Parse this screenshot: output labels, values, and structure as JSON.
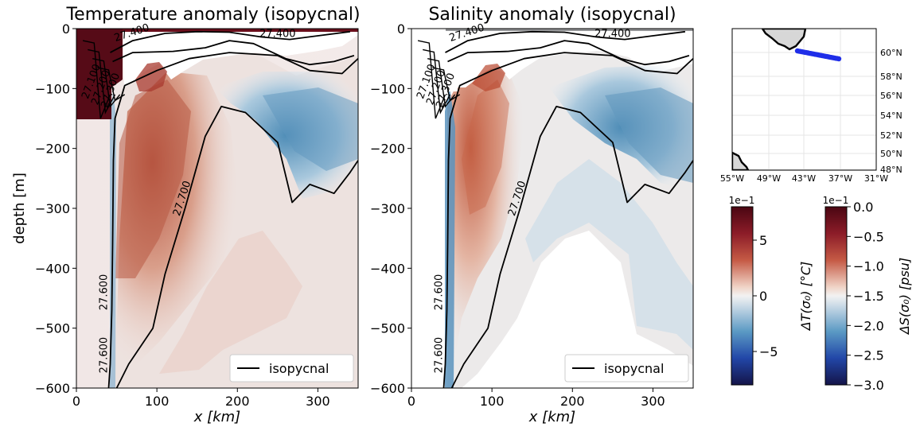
{
  "chart_data": [
    {
      "type": "heatmap",
      "title": "Temperature anomaly (isopycnal)",
      "xlabel": "x [km]",
      "ylabel": "depth [m]",
      "xlim": [
        0,
        350
      ],
      "ylim": [
        -600,
        0
      ],
      "xticks": [
        0,
        100,
        200,
        300
      ],
      "yticks": [
        0,
        -100,
        -200,
        -300,
        -400,
        -500,
        -600
      ],
      "legend": {
        "label": "isopycnal",
        "placement": "bottom-right"
      },
      "contour_labels": [
        "27.400",
        "27.400",
        "27.100",
        "27.200",
        "27.300",
        "27.600",
        "27.600",
        "27.700"
      ],
      "isopycnals": [
        {
          "level": 27.4,
          "points": [
            [
              42,
              -40
            ],
            [
              70,
              -20
            ],
            [
              110,
              -8
            ],
            [
              150,
              -5
            ],
            [
              190,
              -6
            ],
            [
              230,
              -14
            ],
            [
              265,
              -18
            ],
            [
              300,
              -12
            ],
            [
              340,
              -5
            ]
          ]
        },
        {
          "level": 27.5,
          "points": [
            [
              45,
              -55
            ],
            [
              70,
              -40
            ],
            [
              120,
              -38
            ],
            [
              160,
              -32
            ],
            [
              190,
              -20
            ],
            [
              220,
              -25
            ],
            [
              260,
              -50
            ],
            [
              290,
              -60
            ],
            [
              320,
              -55
            ],
            [
              345,
              -45
            ]
          ]
        },
        {
          "level": 27.6,
          "points": [
            [
              40,
              -600
            ],
            [
              42,
              -560
            ],
            [
              44,
              -470
            ],
            [
              45,
              -360
            ],
            [
              46,
              -220
            ],
            [
              48,
              -150
            ],
            [
              60,
              -95
            ],
            [
              100,
              -70
            ],
            [
              140,
              -50
            ],
            [
              190,
              -40
            ],
            [
              250,
              -45
            ],
            [
              290,
              -70
            ],
            [
              330,
              -75
            ],
            [
              350,
              -50
            ]
          ]
        },
        {
          "level": 27.7,
          "points": [
            [
              50,
              -600
            ],
            [
              65,
              -560
            ],
            [
              95,
              -500
            ],
            [
              110,
              -410
            ],
            [
              135,
              -300
            ],
            [
              160,
              -180
            ],
            [
              180,
              -130
            ],
            [
              210,
              -140
            ],
            [
              250,
              -190
            ],
            [
              268,
              -290
            ],
            [
              290,
              -260
            ],
            [
              320,
              -275
            ],
            [
              340,
              -240
            ],
            [
              350,
              -220
            ]
          ]
        }
      ]
    },
    {
      "type": "heatmap",
      "title": "Salinity anomaly (isopycnal)",
      "xlabel": "x [km]",
      "ylabel": "",
      "xlim": [
        0,
        350
      ],
      "ylim": [
        -600,
        0
      ],
      "xticks": [
        0,
        100,
        200,
        300
      ],
      "yticks": [
        0,
        -100,
        -200,
        -300,
        -400,
        -500,
        -600
      ],
      "legend": {
        "label": "isopycnal",
        "placement": "bottom-right"
      },
      "contour_labels": [
        "27.400",
        "27.400",
        "27.100",
        "27.200",
        "27.300",
        "27.600",
        "27.600",
        "27.700"
      ]
    }
  ],
  "map": {
    "lon_labels": [
      "55°W",
      "49°W",
      "43°W",
      "37°W",
      "31°W"
    ],
    "lat_labels": [
      "60°N",
      "58°N",
      "56°N",
      "54°N",
      "52°N",
      "50°N",
      "48°N"
    ],
    "track_color": "#1f2ee8"
  },
  "colorbars": [
    {
      "label": "ΔT(σ₀) [°C]",
      "scale": "1e−1",
      "ticks": [
        "5",
        "0",
        "−5"
      ],
      "range": [
        -8,
        8
      ]
    },
    {
      "label": "ΔS(σ₀) [psu]",
      "scale": "1e−1",
      "ticks": [
        "0.0",
        "−0.5",
        "−1.0",
        "−1.5",
        "−2.0",
        "−2.5",
        "−3.0"
      ],
      "range": [
        -3.0,
        0.0
      ]
    }
  ],
  "colors": {
    "warm_dark": "#5b0b16",
    "warm": "#b5463b",
    "neutral": "#f3f0f0",
    "cool": "#5b93b8",
    "cool_dark": "#161a4d"
  }
}
